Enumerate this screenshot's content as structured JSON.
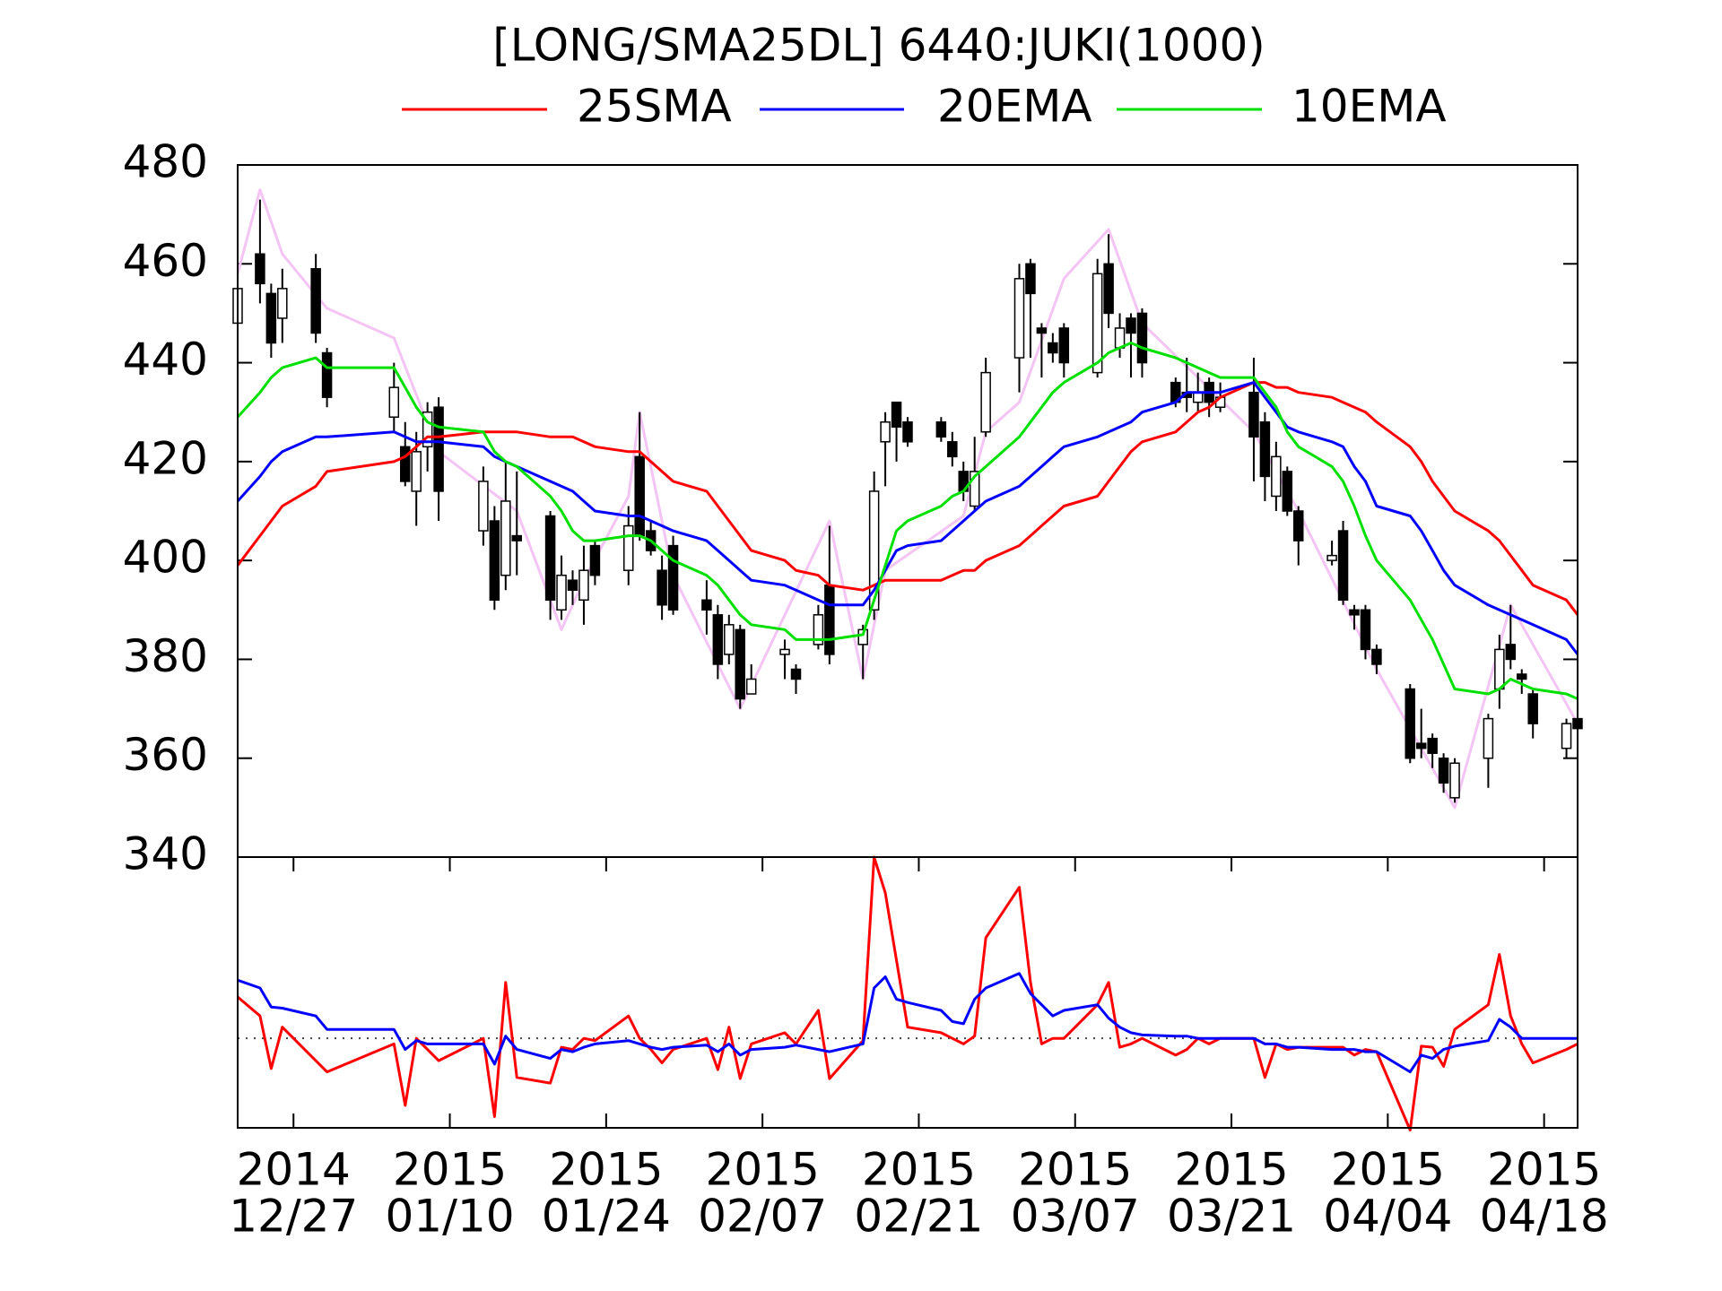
{
  "chart_data": {
    "type": "candlestick",
    "title": "[LONG/SMA25DL] 6440:JUKI(1000)",
    "x": [
      "2014-12-22",
      "2014-12-24",
      "2014-12-25",
      "2014-12-26",
      "2014-12-29",
      "2014-12-30",
      "2015-01-05",
      "2015-01-06",
      "2015-01-07",
      "2015-01-08",
      "2015-01-09",
      "2015-01-13",
      "2015-01-14",
      "2015-01-15",
      "2015-01-16",
      "2015-01-19",
      "2015-01-20",
      "2015-01-21",
      "2015-01-22",
      "2015-01-23",
      "2015-01-26",
      "2015-01-27",
      "2015-01-28",
      "2015-01-29",
      "2015-01-30",
      "2015-02-02",
      "2015-02-03",
      "2015-02-04",
      "2015-02-05",
      "2015-02-06",
      "2015-02-09",
      "2015-02-10",
      "2015-02-12",
      "2015-02-13",
      "2015-02-16",
      "2015-02-17",
      "2015-02-18",
      "2015-02-19",
      "2015-02-20",
      "2015-02-23",
      "2015-02-24",
      "2015-02-25",
      "2015-02-26",
      "2015-02-27",
      "2015-03-02",
      "2015-03-03",
      "2015-03-04",
      "2015-03-05",
      "2015-03-06",
      "2015-03-09",
      "2015-03-10",
      "2015-03-11",
      "2015-03-12",
      "2015-03-13",
      "2015-03-16",
      "2015-03-17",
      "2015-03-18",
      "2015-03-19",
      "2015-03-20",
      "2015-03-23",
      "2015-03-24",
      "2015-03-25",
      "2015-03-26",
      "2015-03-27",
      "2015-03-30",
      "2015-03-31",
      "2015-04-01",
      "2015-04-02",
      "2015-04-03",
      "2015-04-06",
      "2015-04-07",
      "2015-04-08",
      "2015-04-09",
      "2015-04-10",
      "2015-04-13",
      "2015-04-14",
      "2015-04-15",
      "2015-04-16",
      "2015-04-17",
      "2015-04-20",
      "2015-04-21"
    ],
    "open": [
      448,
      462,
      454,
      449,
      459,
      442,
      429,
      423,
      414,
      423,
      431,
      406,
      408,
      397,
      405,
      409,
      390,
      396,
      392,
      403,
      398,
      421,
      406,
      398,
      403,
      392,
      389,
      381,
      386,
      373,
      381,
      378,
      383,
      395,
      383,
      390,
      424,
      432,
      428,
      428,
      424,
      418,
      411,
      426,
      441,
      460,
      447,
      444,
      447,
      438,
      460,
      443,
      449,
      450,
      436,
      434,
      432,
      436,
      431,
      434,
      428,
      413,
      418,
      410,
      400,
      406,
      390,
      390,
      382,
      374,
      363,
      364,
      360,
      352,
      360,
      374,
      383,
      377,
      373,
      362,
      368
    ],
    "high": [
      458,
      473,
      456,
      459,
      462,
      443,
      440,
      428,
      426,
      432,
      433,
      419,
      411,
      420,
      418,
      410,
      401,
      398,
      403,
      404,
      411,
      430,
      408,
      401,
      405,
      396,
      391,
      389,
      387,
      379,
      384,
      379,
      391,
      407,
      387,
      418,
      430,
      432,
      429,
      429,
      426,
      420,
      425,
      441,
      460,
      461,
      448,
      446,
      448,
      461,
      466,
      450,
      450,
      451,
      437,
      441,
      438,
      437,
      436,
      441,
      430,
      424,
      419,
      411,
      404,
      408,
      391,
      391,
      383,
      375,
      370,
      365,
      361,
      360,
      369,
      385,
      391,
      378,
      374,
      368,
      369
    ],
    "low": [
      446,
      452,
      441,
      444,
      444,
      431,
      426,
      415,
      407,
      418,
      408,
      403,
      390,
      394,
      397,
      388,
      388,
      391,
      387,
      395,
      395,
      404,
      401,
      388,
      389,
      385,
      376,
      379,
      370,
      373,
      376,
      373,
      382,
      379,
      376,
      388,
      415,
      420,
      423,
      424,
      419,
      412,
      410,
      425,
      434,
      441,
      437,
      440,
      437,
      437,
      447,
      441,
      437,
      437,
      431,
      430,
      430,
      429,
      430,
      416,
      412,
      410,
      409,
      399,
      399,
      391,
      386,
      380,
      377,
      359,
      360,
      358,
      353,
      351,
      354,
      370,
      378,
      373,
      364,
      360,
      364
    ],
    "close": [
      455,
      456,
      444,
      455,
      446,
      433,
      435,
      416,
      422,
      430,
      414,
      416,
      392,
      412,
      404,
      392,
      397,
      394,
      398,
      397,
      407,
      405,
      402,
      391,
      390,
      390,
      379,
      387,
      372,
      376,
      382,
      376,
      389,
      381,
      386,
      414,
      428,
      427,
      424,
      425,
      421,
      414,
      418,
      438,
      457,
      454,
      446,
      442,
      440,
      458,
      450,
      447,
      446,
      440,
      432,
      433,
      434,
      432,
      433,
      425,
      417,
      421,
      410,
      404,
      401,
      392,
      389,
      382,
      379,
      360,
      362,
      361,
      355,
      359,
      368,
      382,
      380,
      376,
      367,
      367,
      366
    ],
    "series": [
      {
        "name": "25SMA",
        "color": "#ff0000",
        "values": [
          399,
          405,
          408,
          411,
          415,
          418,
          420,
          421,
          423,
          425,
          425,
          426,
          426,
          426,
          426,
          425,
          425,
          425,
          424,
          423,
          422,
          422,
          420,
          418,
          416,
          414,
          411,
          408,
          405,
          402,
          400,
          398,
          397,
          395,
          394,
          395,
          396,
          396,
          396,
          396,
          397,
          398,
          398,
          400,
          403,
          405,
          407,
          409,
          411,
          413,
          416,
          419,
          422,
          424,
          426,
          428,
          430,
          431,
          433,
          436,
          436,
          435,
          435,
          434,
          433,
          432,
          431,
          430,
          428,
          423,
          420,
          416,
          413,
          410,
          406,
          404,
          401,
          398,
          395,
          392,
          389
        ]
      },
      {
        "name": "20EMA",
        "color": "#0000ff",
        "values": [
          412,
          417,
          420,
          422,
          425,
          425,
          426,
          425,
          424,
          424,
          424,
          423,
          421,
          420,
          419,
          416,
          415,
          414,
          412,
          410,
          409,
          409,
          408,
          407,
          406,
          404,
          402,
          400,
          398,
          396,
          395,
          394,
          392,
          391,
          391,
          394,
          398,
          402,
          403,
          404,
          406,
          408,
          410,
          412,
          415,
          417,
          419,
          421,
          423,
          425,
          426,
          427,
          428,
          430,
          432,
          434,
          434,
          434,
          434,
          436,
          433,
          430,
          427,
          426,
          424,
          423,
          419,
          416,
          411,
          409,
          406,
          402,
          398,
          395,
          391,
          390,
          389,
          388,
          387,
          384,
          381
        ]
      },
      {
        "name": "10EMA",
        "color": "#00e000",
        "values": [
          429,
          434,
          437,
          439,
          441,
          439,
          439,
          435,
          431,
          428,
          427,
          426,
          422,
          420,
          419,
          413,
          410,
          406,
          404,
          404,
          405,
          405,
          404,
          402,
          400,
          397,
          395,
          392,
          389,
          387,
          386,
          384,
          384,
          384,
          385,
          392,
          399,
          406,
          408,
          411,
          413,
          414,
          417,
          419,
          425,
          428,
          431,
          434,
          436,
          440,
          442,
          443,
          444,
          443,
          441,
          440,
          439,
          438,
          437,
          437,
          434,
          431,
          426,
          423,
          419,
          416,
          411,
          405,
          400,
          392,
          388,
          384,
          379,
          374,
          373,
          374,
          376,
          375,
          374,
          373,
          372
        ]
      }
    ],
    "zigzag": {
      "color": "#f4c4f4",
      "x": [
        "2014-12-22",
        "2014-12-24",
        "2014-12-26",
        "2014-12-30",
        "2015-01-05",
        "2015-01-09",
        "2015-01-16",
        "2015-01-20",
        "2015-01-22",
        "2015-01-26",
        "2015-01-27",
        "2015-01-30",
        "2015-02-05",
        "2015-02-13",
        "2015-02-16",
        "2015-02-18",
        "2015-02-25",
        "2015-02-27",
        "2015-03-02",
        "2015-03-06",
        "2015-03-10",
        "2015-03-13",
        "2015-03-23",
        "2015-03-27",
        "2015-04-03",
        "2015-04-10",
        "2015-04-15",
        "2015-04-21"
      ],
      "values": [
        458,
        475,
        462,
        451,
        445,
        422,
        410,
        386,
        396,
        413,
        430,
        397,
        370,
        408,
        376,
        398,
        409,
        426,
        432,
        457,
        467,
        448,
        426,
        410,
        378,
        350,
        391,
        367
      ]
    },
    "up_color": "#ffffff",
    "down_color": "#000000",
    "xlim": [
      "2014-12-22",
      "2015-04-21"
    ],
    "xticks": [
      {
        "value": "2014-12-27",
        "year": "2014",
        "label": "12/27"
      },
      {
        "value": "2015-01-10",
        "year": "2015",
        "label": "01/10"
      },
      {
        "value": "2015-01-24",
        "year": "2015",
        "label": "01/24"
      },
      {
        "value": "2015-02-07",
        "year": "2015",
        "label": "02/07"
      },
      {
        "value": "2015-02-21",
        "year": "2015",
        "label": "02/21"
      },
      {
        "value": "2015-03-07",
        "year": "2015",
        "label": "03/07"
      },
      {
        "value": "2015-03-21",
        "year": "2015",
        "label": "03/21"
      },
      {
        "value": "2015-04-04",
        "year": "2015",
        "label": "04/04"
      },
      {
        "value": "2015-04-18",
        "year": "2015",
        "label": "04/18"
      }
    ],
    "ylim": [
      340,
      480
    ],
    "yticks": [
      340,
      360,
      380,
      400,
      420,
      440,
      460,
      480
    ],
    "lower_panel": {
      "ylim": [
        -80,
        162
      ],
      "reference_line": 0,
      "series": [
        {
          "color": "#ff0000",
          "values": [
            37,
            20,
            -27,
            10,
            -20,
            -30,
            -5,
            -60,
            0,
            -10,
            -20,
            0,
            -70,
            50,
            -35,
            -40,
            -8,
            -10,
            0,
            -2,
            20,
            0,
            -10,
            -22,
            -10,
            0,
            -28,
            10,
            -36,
            -5,
            5,
            -5,
            25,
            -36,
            -2,
            162,
            130,
            70,
            10,
            5,
            0,
            -5,
            2,
            90,
            135,
            50,
            -5,
            0,
            0,
            30,
            50,
            -8,
            -5,
            0,
            -15,
            -10,
            0,
            -5,
            0,
            0,
            -35,
            -5,
            -10,
            -8,
            -8,
            -8,
            -15,
            -10,
            -12,
            -82,
            -7,
            -8,
            -25,
            8,
            30,
            75,
            20,
            -5,
            -22,
            -10,
            -5
          ]
        },
        {
          "color": "#0000ff",
          "values": [
            52,
            45,
            28,
            27,
            20,
            8,
            8,
            -10,
            -2,
            -5,
            -5,
            -5,
            -23,
            2,
            -10,
            -18,
            -10,
            -12,
            -8,
            -5,
            -2,
            -5,
            -8,
            -10,
            -8,
            -6,
            -12,
            -5,
            -15,
            -10,
            -8,
            -6,
            -10,
            -12,
            -5,
            45,
            55,
            35,
            32,
            25,
            15,
            13,
            35,
            45,
            58,
            40,
            30,
            20,
            25,
            30,
            18,
            10,
            5,
            3,
            2,
            2,
            0,
            0,
            0,
            0,
            -5,
            -5,
            -8,
            -8,
            -10,
            -10,
            -10,
            -12,
            -12,
            -30,
            -15,
            -18,
            -10,
            -7,
            -2,
            17,
            10,
            0,
            0,
            0,
            0
          ]
        }
      ]
    }
  }
}
